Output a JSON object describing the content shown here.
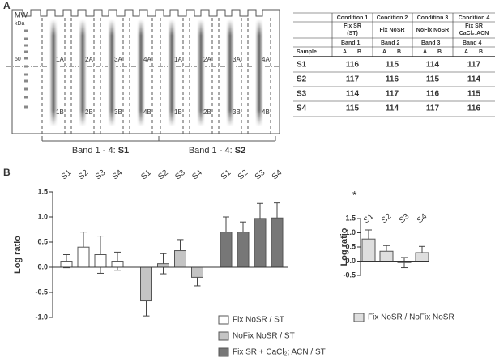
{
  "panels": {
    "a": "A",
    "b": "B"
  },
  "gel": {
    "mw": "MW",
    "kda": "kDa",
    "marker": "50",
    "lanes_a": [
      "1A",
      "2A",
      "3A",
      "4A"
    ],
    "lanes_b": [
      "1B",
      "2B",
      "3B",
      "4B"
    ],
    "groups": [
      {
        "prefix": "Band 1 - 4:",
        "sample": "S1"
      },
      {
        "prefix": "Band 1 - 4:",
        "sample": "S2"
      }
    ]
  },
  "table": {
    "conditions": [
      "Condition 1",
      "Condition 2",
      "Condition 3",
      "Condition 4"
    ],
    "treatments": [
      [
        "Fix SR",
        "(ST)"
      ],
      [
        "Fix NoSR"
      ],
      [
        "NoFix NoSR"
      ],
      [
        "Fix SR",
        "CaCl₂:ACN"
      ]
    ],
    "sample_header": "Sample",
    "bands": [
      "Band 1",
      "Band 2",
      "Band 3",
      "Band 4"
    ],
    "sub": [
      "A",
      "B"
    ],
    "rows": [
      [
        "S1",
        "116",
        "115",
        "114",
        "117"
      ],
      [
        "S2",
        "117",
        "116",
        "115",
        "114"
      ],
      [
        "S3",
        "114",
        "117",
        "116",
        "115"
      ],
      [
        "S4",
        "115",
        "114",
        "117",
        "116"
      ]
    ]
  },
  "chart_data": [
    {
      "type": "bar",
      "y_label": "Log ratio",
      "categories": [
        "S1",
        "S2",
        "S3",
        "S4"
      ],
      "series": [
        {
          "name": "Fix NoSR / ST",
          "color": "#ffffff",
          "values": [
            0.12,
            0.4,
            0.25,
            0.12
          ],
          "errors": [
            0.13,
            0.3,
            0.37,
            0.18
          ]
        },
        {
          "name": "NoFix NoSR / ST",
          "color": "#c4c4c4",
          "values": [
            -0.67,
            0.07,
            0.33,
            -0.2
          ],
          "errors": [
            0.3,
            0.2,
            0.22,
            0.17
          ]
        },
        {
          "name": "Fix SR + CaCl₂; ACN / ST",
          "color": "#777777",
          "values": [
            0.7,
            0.7,
            0.97,
            0.98
          ],
          "errors": [
            0.3,
            0.2,
            0.3,
            0.3
          ]
        }
      ],
      "ylim": [
        -1,
        1.5
      ],
      "yticks": [
        {
          "value": -1,
          "label": "-1.0"
        },
        -0.5,
        {
          "value": 0,
          "label": "0.0"
        },
        0.5,
        {
          "value": 1,
          "label": "1.0"
        },
        1.5
      ]
    },
    {
      "type": "bar",
      "y_label": "Log ratio",
      "annotation": "*",
      "categories": [
        "S1",
        "S2",
        "S3",
        "S4"
      ],
      "series": [
        {
          "name": "Fix NoSR / NoFix NoSR",
          "color": "#dedede",
          "values": [
            0.78,
            0.35,
            -0.05,
            0.3
          ],
          "errors": [
            0.32,
            0.2,
            0.18,
            0.22
          ]
        }
      ],
      "ylim": [
        -0.5,
        1.5
      ],
      "yticks": [
        -0.5,
        {
          "value": 0,
          "label": "0.0"
        },
        0.5,
        {
          "value": 1,
          "label": "1.0"
        },
        1.5
      ]
    }
  ]
}
